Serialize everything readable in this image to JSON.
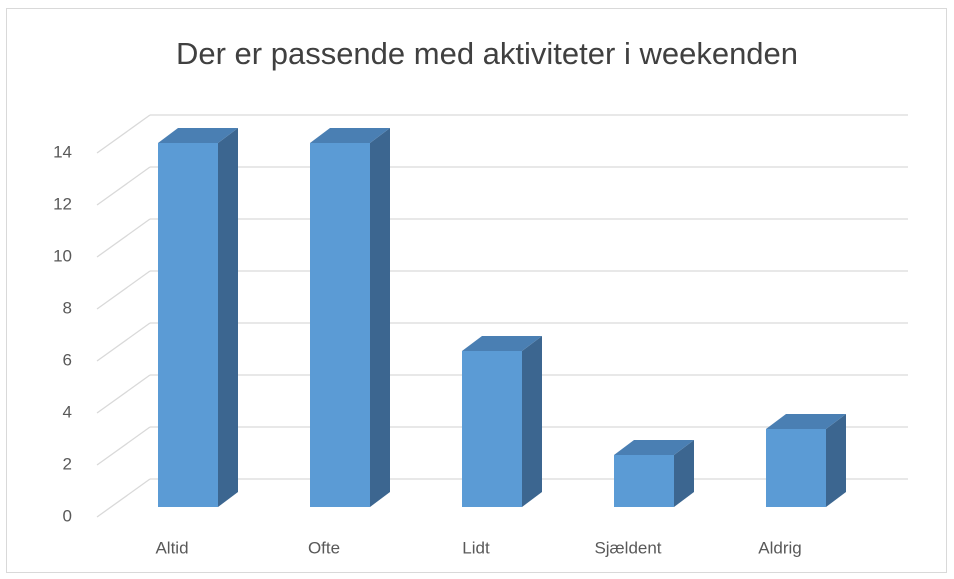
{
  "chart_data": {
    "type": "bar3d",
    "title": "Der er passende med aktiviteter i weekenden",
    "categories": [
      "Altid",
      "Ofte",
      "Lidt",
      "Sjældent",
      "Aldrig"
    ],
    "values": [
      14,
      14,
      6,
      2,
      3
    ],
    "color": "#5b9bd5",
    "ylim": [
      0,
      14
    ],
    "yticks": [
      0,
      2,
      4,
      6,
      8,
      10,
      12,
      14
    ],
    "grid": true
  }
}
